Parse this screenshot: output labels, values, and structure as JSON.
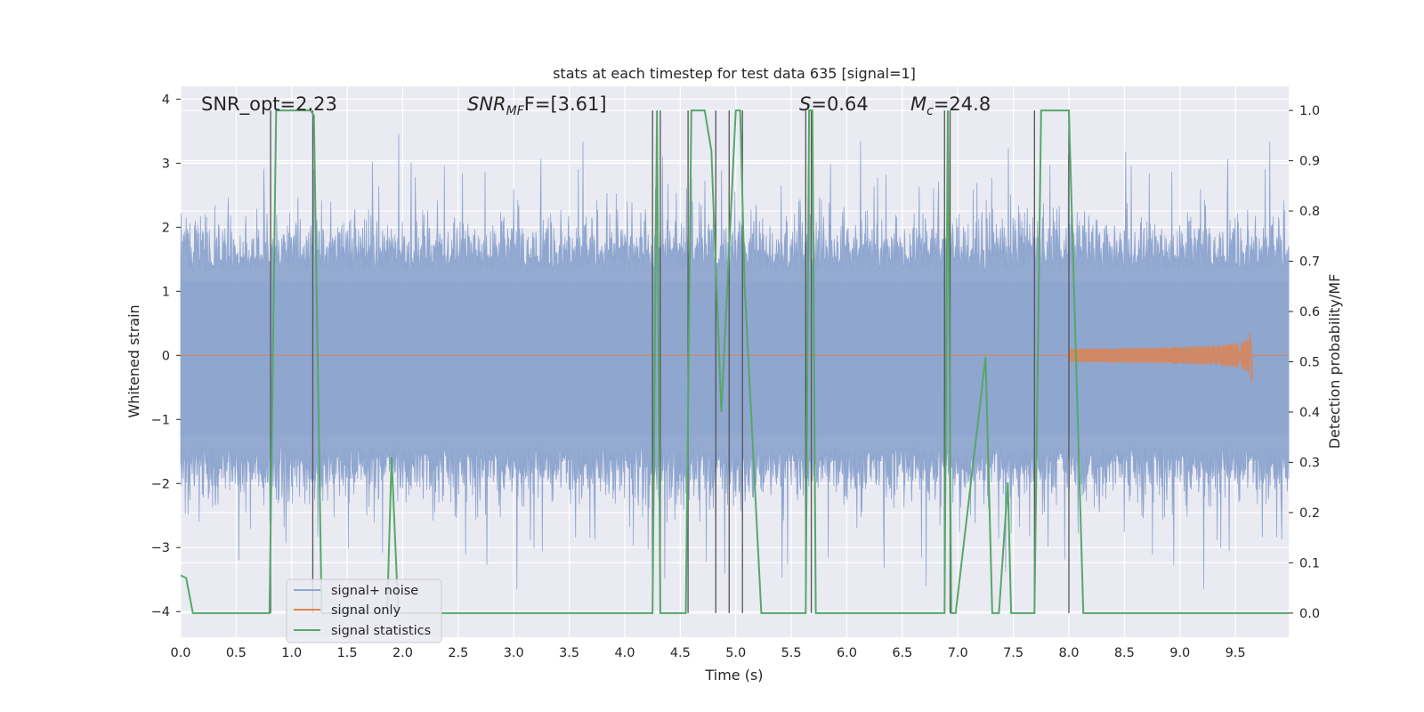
{
  "chart_data": {
    "type": "line",
    "title": "stats at each timestep for test data 635 [signal=1]",
    "xlabel": "Time (s)",
    "ylabel": "Whitened strain",
    "y2label": "Detection probability/MF",
    "xlim": [
      0.0,
      9.98
    ],
    "ylim": [
      -4.4,
      4.2
    ],
    "y2lim": [
      -0.048,
      1.048
    ],
    "grid": true,
    "legend_position": "lower-left",
    "x_ticks": [
      "0.0",
      "0.5",
      "1.0",
      "1.5",
      "2.0",
      "2.5",
      "3.0",
      "3.5",
      "4.0",
      "4.5",
      "5.0",
      "5.5",
      "6.0",
      "6.5",
      "7.0",
      "7.5",
      "8.0",
      "8.5",
      "9.0",
      "9.5"
    ],
    "y_ticks": [
      "4",
      "3",
      "2",
      "1",
      "0",
      "−1",
      "−2",
      "−3",
      "−4"
    ],
    "y2_ticks": [
      "1.0",
      "0.9",
      "0.8",
      "0.7",
      "0.6",
      "0.5",
      "0.4",
      "0.3",
      "0.2",
      "0.1",
      "0.0"
    ],
    "annotations": {
      "snr_opt": "SNR_opt=2.23",
      "snr_mf_main": "SNR",
      "snr_mf_sub": "MF",
      "snr_mf_rest": "F=[3.61]",
      "s_main": "S",
      "s_rest": "=0.64",
      "mc_main": "M",
      "mc_sub": "c",
      "mc_rest": "=24.8"
    },
    "series": [
      {
        "name": "signal+ noise",
        "color": "#8fa6cf",
        "description_values": "dense whitened noise, roughly within -2.5..2.5 with peaks near 3.5/-4"
      },
      {
        "name": "signal only",
        "color": "#dd8452",
        "chirp": {
          "start": 8.0,
          "merger": 9.65,
          "peak_amplitude": 0.5
        }
      },
      {
        "name": "signal statistics",
        "color": "#55a868",
        "x": [
          0.0,
          0.05,
          0.11,
          0.8,
          0.86,
          0.9,
          1.17,
          1.2,
          1.27,
          1.86,
          1.9,
          1.96,
          4.25,
          4.29,
          4.32,
          4.38,
          4.55,
          4.6,
          4.72,
          4.78,
          4.87,
          5.0,
          5.04,
          5.08,
          5.23,
          5.63,
          5.66,
          5.69,
          5.72,
          6.88,
          6.91,
          6.94,
          6.98,
          7.25,
          7.31,
          7.37,
          7.45,
          7.48,
          7.69,
          7.75,
          7.98,
          8.0,
          8.13,
          9.98
        ],
        "y": [
          0.075,
          0.07,
          0.0,
          0.0,
          1.0,
          1.0,
          1.0,
          0.99,
          0.0,
          0.0,
          0.31,
          0.0,
          0.0,
          1.0,
          0.0,
          0.0,
          0.0,
          1.0,
          1.0,
          0.92,
          0.4,
          1.0,
          1.0,
          0.65,
          0.0,
          0.0,
          1.0,
          1.0,
          0.0,
          0.0,
          1.0,
          0.0,
          0.0,
          0.51,
          0.0,
          0.0,
          0.26,
          0.0,
          0.0,
          1.0,
          1.0,
          1.0,
          0.0,
          0.0
        ]
      }
    ],
    "vertical_markers": [
      0.81,
      1.19,
      4.25,
      4.32,
      4.57,
      4.82,
      4.94,
      5.06,
      5.63,
      5.68,
      6.88,
      6.93,
      7.69,
      8.0
    ]
  },
  "legend": {
    "items": [
      "signal+ noise",
      "signal only",
      "signal statistics"
    ]
  },
  "colors": {
    "plot_background": "#eaeaf2",
    "grid": "#ffffff",
    "noise": "#8fa6cf",
    "signal": "#dd8452",
    "stats": "#55a868",
    "markers": "#555555"
  }
}
